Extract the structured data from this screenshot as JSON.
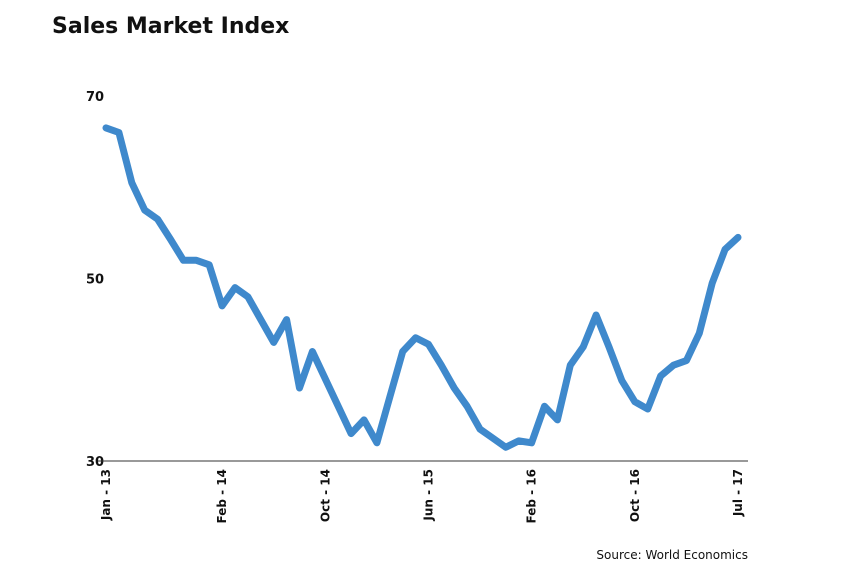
{
  "title": "Sales Market Index",
  "source": "Source: World Economics",
  "colors": {
    "line": "#3f89cc",
    "axis": "#333333",
    "text": "#111111"
  },
  "chart_data": {
    "type": "line",
    "title": "Sales Market Index",
    "xlabel": "",
    "ylabel": "",
    "ylim": [
      30,
      70
    ],
    "y_ticks": [
      30,
      50,
      70
    ],
    "x_tick_labels": [
      "Jan - 13",
      "Feb - 14",
      "Oct - 14",
      "Jun - 15",
      "Feb - 16",
      "Oct - 16",
      "Jul - 17"
    ],
    "x_tick_indices": [
      0,
      9,
      17,
      25,
      33,
      41,
      49
    ],
    "grid": false,
    "legend": "none",
    "series": [
      {
        "values": [
          66.5,
          66.0,
          60.5,
          57.5,
          56.5,
          54.3,
          52.0,
          52.0,
          51.5,
          47.0,
          49.0,
          48.0,
          45.5,
          43.0,
          45.5,
          38.0,
          42.0,
          39.0,
          36.0,
          33.0,
          34.5,
          32.0,
          37.0,
          42.0,
          43.5,
          42.8,
          40.5,
          38.0,
          36.0,
          33.5,
          32.5,
          31.5,
          32.2,
          32.0,
          36.0,
          34.5,
          40.5,
          42.5,
          46.0,
          42.5,
          38.8,
          36.5,
          35.7,
          39.3,
          40.5,
          41.0,
          44.0,
          49.5,
          53.2,
          54.5
        ]
      }
    ]
  }
}
